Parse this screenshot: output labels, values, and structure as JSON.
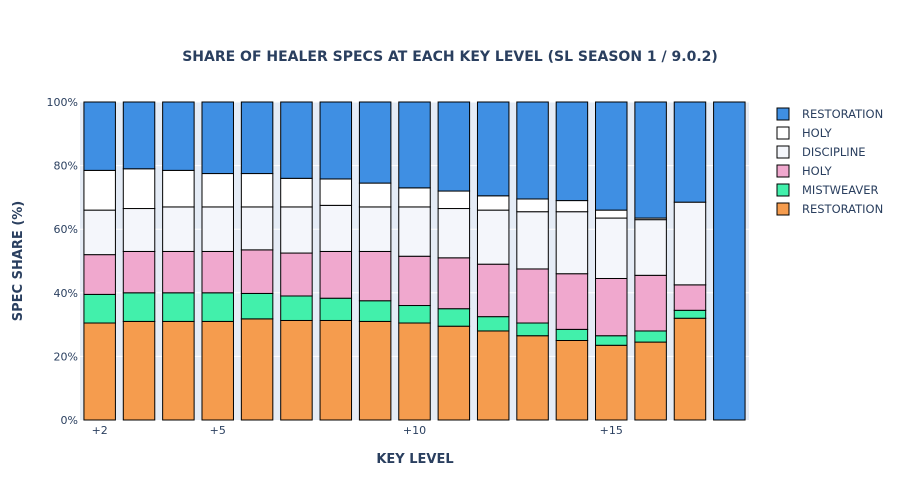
{
  "chart_data": {
    "type": "bar",
    "stacked": true,
    "title": "SHARE OF HEALER SPECS AT EACH KEY LEVEL (SL SEASON 1 / 9.0.2)",
    "xlabel": "KEY LEVEL",
    "ylabel": "SPEC SHARE (%)",
    "ylim": [
      0,
      100
    ],
    "grid": true,
    "legend_position": "right",
    "x": [
      2,
      3,
      4,
      5,
      6,
      7,
      8,
      9,
      10,
      11,
      12,
      13,
      14,
      15,
      16,
      17,
      18
    ],
    "x_ticks": [
      {
        "value": 2,
        "label": "+2"
      },
      {
        "value": 5,
        "label": "+5"
      },
      {
        "value": 10,
        "label": "+10"
      },
      {
        "value": 15,
        "label": "+15"
      }
    ],
    "y_ticks": [
      {
        "value": 0,
        "label": "0%"
      },
      {
        "value": 20,
        "label": "20%"
      },
      {
        "value": 40,
        "label": "40%"
      },
      {
        "value": 60,
        "label": "60%"
      },
      {
        "value": 80,
        "label": "80%"
      },
      {
        "value": 100,
        "label": "100%"
      }
    ],
    "series": [
      {
        "name": "RESTORATION",
        "color": "#f59c4e",
        "values": [
          30.5,
          31,
          31,
          31,
          31.8,
          31.3,
          31.3,
          31,
          30.5,
          29.5,
          28,
          26.5,
          25,
          23.5,
          24.5,
          32,
          0
        ]
      },
      {
        "name": "MISTWEAVER",
        "color": "#42f0ab",
        "values": [
          9,
          9,
          9,
          9,
          8,
          7.7,
          7,
          6.5,
          5.5,
          5.5,
          4.5,
          4,
          3.5,
          3,
          3.5,
          2.5,
          0
        ]
      },
      {
        "name": "HOLY",
        "color": "#f0a8ce",
        "values": [
          12.5,
          13,
          13,
          13,
          13.7,
          13.5,
          14.7,
          15.5,
          15.5,
          16,
          16.5,
          17,
          17.5,
          18,
          17.5,
          8,
          0
        ]
      },
      {
        "name": "DISCIPLINE",
        "color": "#f4f6fb",
        "values": [
          14,
          13.5,
          14,
          14,
          13.5,
          14.5,
          14.5,
          14,
          15.5,
          15.5,
          17,
          18,
          19.5,
          19,
          17.5,
          26,
          0
        ]
      },
      {
        "name": "HOLY",
        "color": "#ffffff",
        "values": [
          12.5,
          12.5,
          11.5,
          10.5,
          10.5,
          9,
          8.3,
          7.5,
          6,
          5.5,
          4.5,
          4,
          3.5,
          2.5,
          0.5,
          0,
          0
        ]
      },
      {
        "name": "RESTORATION",
        "color": "#3f8fe3",
        "values": [
          21.5,
          21,
          21.5,
          22.5,
          22.5,
          24,
          24.2,
          25.5,
          27,
          28,
          29.5,
          30.5,
          31,
          34,
          36.5,
          31.5,
          100
        ]
      }
    ],
    "legend_order": [
      5,
      4,
      3,
      2,
      1,
      0
    ]
  }
}
